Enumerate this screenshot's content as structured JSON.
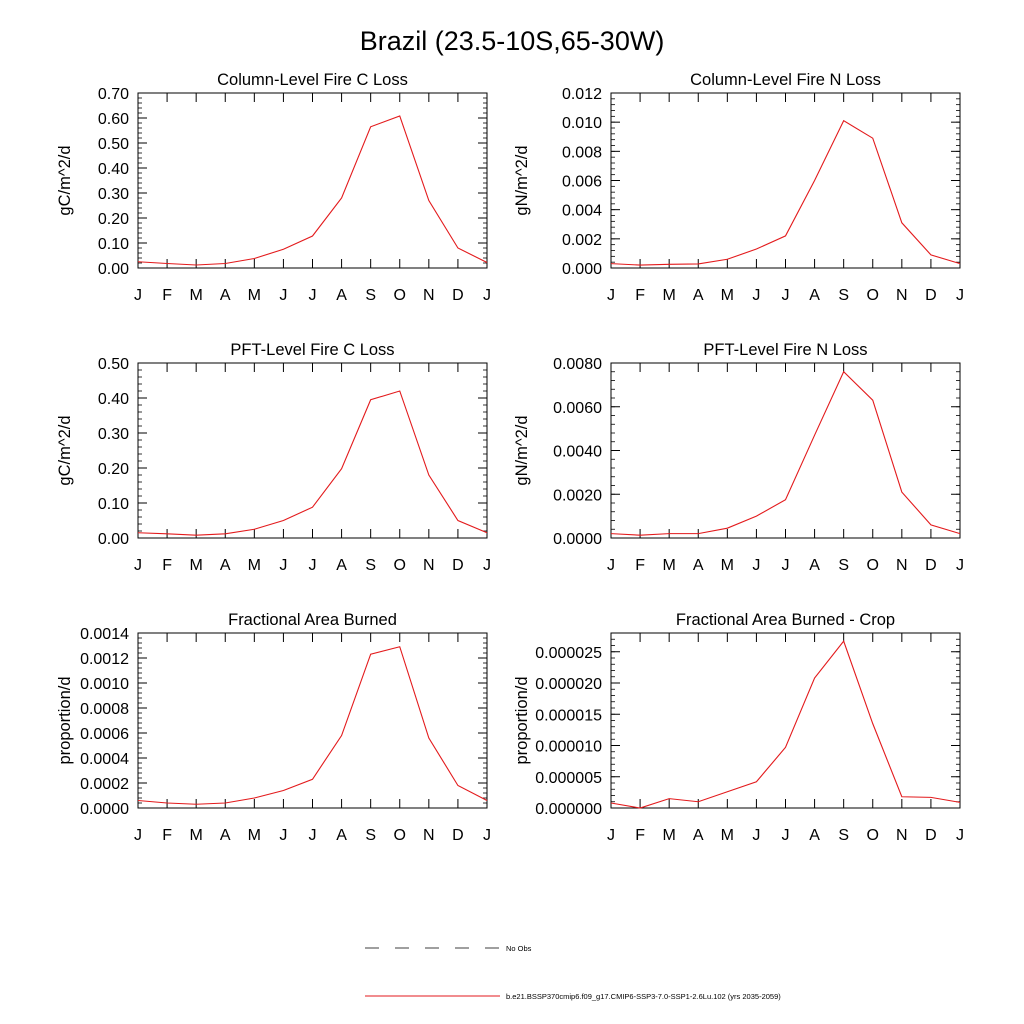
{
  "page": {
    "title": "Brazil (23.5-10S,65-30W)"
  },
  "legend": {
    "items": [
      {
        "label": "No Obs",
        "style": "dashed",
        "color": "#000000"
      },
      {
        "label": "b.e21.BSSP370cmip6.f09_g17.CMIP6-SSP3-7.0-SSP1-2.6Lu.102 (yrs 2035-2059)",
        "style": "solid",
        "color": "#e31a1c"
      }
    ]
  },
  "chart_data": [
    {
      "type": "line",
      "title": "Column-Level Fire C Loss",
      "ylabel": "gC/m^2/d",
      "categories": [
        "J",
        "F",
        "M",
        "A",
        "M",
        "J",
        "J",
        "A",
        "S",
        "O",
        "N",
        "D",
        "J"
      ],
      "ylim": [
        0,
        0.7
      ],
      "yticks": [
        "0.00",
        "0.10",
        "0.20",
        "0.30",
        "0.40",
        "0.50",
        "0.60",
        "0.70"
      ],
      "ytick_values": [
        0,
        0.1,
        0.2,
        0.3,
        0.4,
        0.5,
        0.6,
        0.7
      ],
      "series": [
        {
          "color": "#e31a1c",
          "values": [
            0.025,
            0.018,
            0.012,
            0.018,
            0.038,
            0.075,
            0.128,
            0.28,
            0.565,
            0.608,
            0.27,
            0.08,
            0.022
          ]
        }
      ]
    },
    {
      "type": "line",
      "title": "Column-Level Fire N Loss",
      "ylabel": "gN/m^2/d",
      "categories": [
        "J",
        "F",
        "M",
        "A",
        "M",
        "J",
        "J",
        "A",
        "S",
        "O",
        "N",
        "D",
        "J"
      ],
      "ylim": [
        0,
        0.012
      ],
      "yticks": [
        "0.000",
        "0.002",
        "0.004",
        "0.006",
        "0.008",
        "0.010",
        "0.012"
      ],
      "ytick_values": [
        0,
        0.002,
        0.004,
        0.006,
        0.008,
        0.01,
        0.012
      ],
      "series": [
        {
          "color": "#e31a1c",
          "values": [
            0.0003,
            0.0002,
            0.00025,
            0.00028,
            0.0006,
            0.0013,
            0.0022,
            0.006,
            0.0101,
            0.0089,
            0.0031,
            0.0009,
            0.0003
          ]
        }
      ]
    },
    {
      "type": "line",
      "title": "PFT-Level Fire C Loss",
      "ylabel": "gC/m^2/d",
      "categories": [
        "J",
        "F",
        "M",
        "A",
        "M",
        "J",
        "J",
        "A",
        "S",
        "O",
        "N",
        "D",
        "J"
      ],
      "ylim": [
        0,
        0.5
      ],
      "yticks": [
        "0.00",
        "0.10",
        "0.20",
        "0.30",
        "0.40",
        "0.50"
      ],
      "ytick_values": [
        0,
        0.1,
        0.2,
        0.3,
        0.4,
        0.5
      ],
      "series": [
        {
          "color": "#e31a1c",
          "values": [
            0.015,
            0.012,
            0.008,
            0.012,
            0.025,
            0.05,
            0.088,
            0.198,
            0.395,
            0.42,
            0.18,
            0.05,
            0.015
          ]
        }
      ]
    },
    {
      "type": "line",
      "title": "PFT-Level Fire N Loss",
      "ylabel": "gN/m^2/d",
      "categories": [
        "J",
        "F",
        "M",
        "A",
        "M",
        "J",
        "J",
        "A",
        "S",
        "O",
        "N",
        "D",
        "J"
      ],
      "ylim": [
        0,
        0.008
      ],
      "yticks": [
        "0.0000",
        "0.0020",
        "0.0040",
        "0.0060",
        "0.0080"
      ],
      "ytick_values": [
        0,
        0.002,
        0.004,
        0.006,
        0.008
      ],
      "series": [
        {
          "color": "#e31a1c",
          "values": [
            0.0002,
            0.00013,
            0.0002,
            0.0002,
            0.00045,
            0.001,
            0.00175,
            0.0047,
            0.0076,
            0.0063,
            0.0021,
            0.0006,
            0.0002
          ]
        }
      ]
    },
    {
      "type": "line",
      "title": "Fractional Area Burned",
      "ylabel": "proportion/d",
      "categories": [
        "J",
        "F",
        "M",
        "A",
        "M",
        "J",
        "J",
        "A",
        "S",
        "O",
        "N",
        "D",
        "J"
      ],
      "ylim": [
        0,
        0.0014
      ],
      "yticks": [
        "0.0000",
        "0.0002",
        "0.0004",
        "0.0006",
        "0.0008",
        "0.0010",
        "0.0012",
        "0.0014"
      ],
      "ytick_values": [
        0,
        0.0002,
        0.0004,
        0.0006,
        0.0008,
        0.001,
        0.0012,
        0.0014
      ],
      "series": [
        {
          "color": "#e31a1c",
          "values": [
            6e-05,
            4e-05,
            3e-05,
            4e-05,
            8e-05,
            0.00014,
            0.00023,
            0.00058,
            0.00123,
            0.00129,
            0.00056,
            0.00018,
            6e-05
          ]
        }
      ]
    },
    {
      "type": "line",
      "title": "Fractional Area Burned - Crop",
      "ylabel": "proportion/d",
      "categories": [
        "J",
        "F",
        "M",
        "A",
        "M",
        "J",
        "J",
        "A",
        "S",
        "O",
        "N",
        "D",
        "J"
      ],
      "ylim": [
        0,
        2.8e-05
      ],
      "yticks": [
        "0.000000",
        "0.000005",
        "0.000010",
        "0.000015",
        "0.000020",
        "0.000025"
      ],
      "ytick_values": [
        0,
        5e-06,
        1e-05,
        1.5e-05,
        2e-05,
        2.5e-05
      ],
      "series": [
        {
          "color": "#e31a1c",
          "values": [
            8e-07,
            0.0,
            1.5e-06,
            1e-06,
            2.6e-06,
            4.2e-06,
            9.7e-06,
            2.08e-05,
            2.67e-05,
            1.35e-05,
            1.8e-06,
            1.7e-06,
            9e-07
          ]
        }
      ]
    }
  ]
}
